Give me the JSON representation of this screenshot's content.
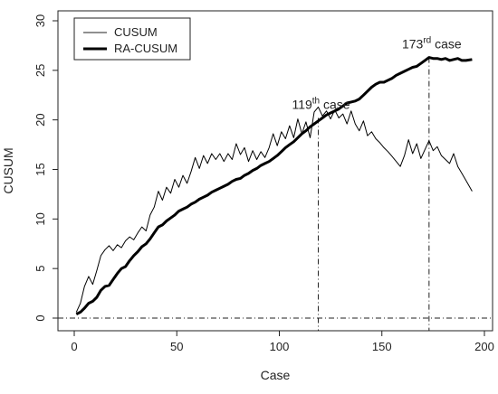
{
  "chart_data": {
    "type": "line",
    "xlabel": "Case",
    "ylabel": "CUSUM",
    "xlim": [
      0,
      200
    ],
    "ylim": [
      0,
      30
    ],
    "xticks": [
      0,
      50,
      100,
      150,
      200
    ],
    "yticks": [
      0,
      5,
      10,
      15,
      20,
      25,
      30
    ],
    "legend_position": "top-left",
    "reference_lines": {
      "horizontal_y": 0,
      "vertical_x": [
        119,
        173
      ]
    },
    "annotations": [
      {
        "num": "119",
        "sup": "th",
        "suffix": " case",
        "x": 119,
        "y": 20.2
      },
      {
        "num": "173",
        "sup": "rd",
        "suffix": " case",
        "x": 173,
        "y": 26.3
      }
    ],
    "series": [
      {
        "name": "CUSUM",
        "line_weight": "thin",
        "x": [
          1,
          3,
          5,
          7,
          9,
          11,
          13,
          15,
          17,
          19,
          21,
          23,
          25,
          27,
          29,
          31,
          33,
          35,
          37,
          39,
          41,
          43,
          45,
          47,
          49,
          51,
          53,
          55,
          57,
          59,
          61,
          63,
          65,
          67,
          69,
          71,
          73,
          75,
          77,
          79,
          81,
          83,
          85,
          87,
          89,
          91,
          93,
          95,
          97,
          99,
          101,
          103,
          105,
          107,
          109,
          111,
          113,
          115,
          117,
          119,
          121,
          123,
          125,
          127,
          129,
          131,
          133,
          135,
          137,
          139,
          141,
          143,
          145,
          147,
          149,
          151,
          153,
          155,
          157,
          159,
          161,
          163,
          165,
          167,
          169,
          171,
          173,
          175,
          177,
          179,
          181,
          183,
          185,
          187,
          189,
          191,
          194
        ],
        "y": [
          0.6,
          1.5,
          3.2,
          4.2,
          3.4,
          4.8,
          6.3,
          6.9,
          7.3,
          6.8,
          7.4,
          7.1,
          7.8,
          8.2,
          7.9,
          8.6,
          9.2,
          8.8,
          10.4,
          11.2,
          12.8,
          11.9,
          13.2,
          12.6,
          14.0,
          13.2,
          14.4,
          13.6,
          14.8,
          16.2,
          15.1,
          16.4,
          15.6,
          16.6,
          16.0,
          16.6,
          15.8,
          16.6,
          16.0,
          17.6,
          16.5,
          17.2,
          15.8,
          16.9,
          16.0,
          16.8,
          16.2,
          17.2,
          18.6,
          17.4,
          18.8,
          18.1,
          19.4,
          18.2,
          20.1,
          18.6,
          19.8,
          18.2,
          20.8,
          21.3,
          20.4,
          20.9,
          20.1,
          21.0,
          20.2,
          20.6,
          19.6,
          20.9,
          19.6,
          18.9,
          19.9,
          18.4,
          18.8,
          18.1,
          17.7,
          17.2,
          16.8,
          16.3,
          15.8,
          15.3,
          16.4,
          18.0,
          16.6,
          17.6,
          16.1,
          17.0,
          17.9,
          16.9,
          17.3,
          16.4,
          16.0,
          15.6,
          16.6,
          15.3,
          14.6,
          13.9,
          12.8
        ]
      },
      {
        "name": "RA-CUSUM",
        "line_weight": "thick",
        "x": [
          1,
          3,
          5,
          7,
          9,
          11,
          13,
          15,
          17,
          19,
          21,
          23,
          25,
          27,
          29,
          31,
          33,
          35,
          37,
          39,
          41,
          43,
          45,
          47,
          49,
          51,
          53,
          55,
          57,
          59,
          61,
          63,
          65,
          67,
          69,
          71,
          73,
          75,
          77,
          79,
          81,
          83,
          85,
          87,
          89,
          91,
          93,
          95,
          97,
          99,
          101,
          103,
          105,
          107,
          109,
          111,
          113,
          115,
          117,
          119,
          121,
          123,
          125,
          127,
          129,
          131,
          133,
          135,
          137,
          139,
          141,
          143,
          145,
          147,
          149,
          151,
          153,
          155,
          157,
          159,
          161,
          163,
          165,
          167,
          169,
          171,
          173,
          175,
          177,
          179,
          181,
          183,
          185,
          187,
          189,
          191,
          194
        ],
        "y": [
          0.4,
          0.6,
          1.0,
          1.5,
          1.7,
          2.1,
          2.8,
          3.2,
          3.3,
          3.9,
          4.5,
          5.0,
          5.2,
          5.8,
          6.3,
          6.7,
          7.2,
          7.5,
          8.0,
          8.6,
          9.2,
          9.4,
          9.8,
          10.1,
          10.4,
          10.8,
          11.0,
          11.2,
          11.5,
          11.7,
          12.0,
          12.2,
          12.4,
          12.7,
          12.9,
          13.1,
          13.3,
          13.5,
          13.8,
          14.0,
          14.1,
          14.4,
          14.6,
          14.9,
          15.1,
          15.4,
          15.6,
          15.8,
          16.1,
          16.4,
          16.8,
          17.2,
          17.5,
          17.8,
          18.2,
          18.6,
          18.9,
          19.3,
          19.6,
          19.9,
          20.2,
          20.5,
          20.7,
          20.9,
          21.1,
          21.4,
          21.7,
          21.8,
          21.9,
          22.1,
          22.5,
          22.9,
          23.3,
          23.6,
          23.8,
          23.8,
          24.0,
          24.2,
          24.5,
          24.7,
          24.9,
          25.1,
          25.3,
          25.4,
          25.7,
          26.0,
          26.3,
          26.2,
          26.2,
          26.1,
          26.2,
          26.0,
          26.1,
          26.2,
          26.0,
          26.0,
          26.1
        ]
      }
    ]
  }
}
